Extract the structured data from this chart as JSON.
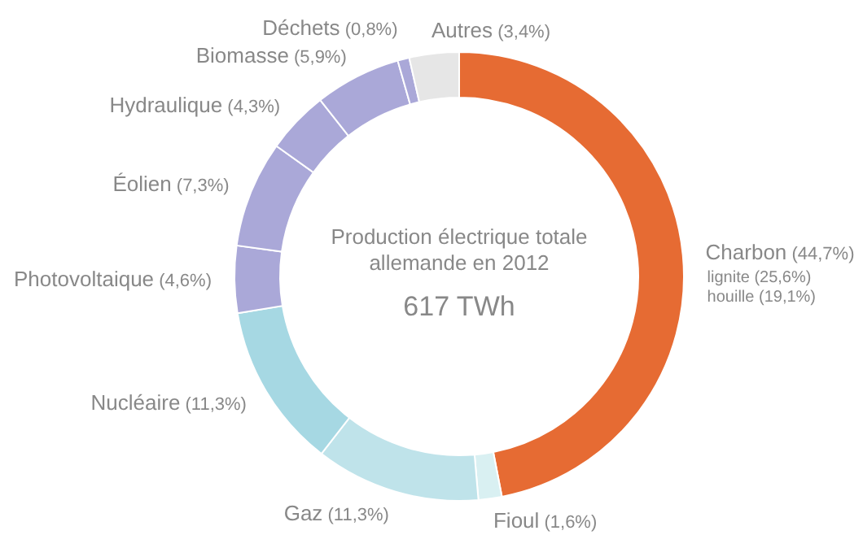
{
  "chart_data": {
    "type": "donut",
    "title": "Production électrique totale allemande en 2012",
    "subtitle": "617 TWh",
    "categories": [
      "Charbon",
      "Fioul",
      "Gaz",
      "Nucléaire",
      "Photovoltaique",
      "Éolien",
      "Hydraulique",
      "Biomasse",
      "Déchets",
      "Autres"
    ],
    "values": [
      44.7,
      1.6,
      11.3,
      11.3,
      4.6,
      7.3,
      4.3,
      5.9,
      0.8,
      3.4
    ],
    "value_labels": [
      "(44,7%)",
      "(1,6%)",
      "(11,3%)",
      "(11,3%)",
      "(4,6%)",
      "(7,3%)",
      "(4,3%)",
      "(5,9%)",
      "(0,8%)",
      "(3,4%)"
    ],
    "colors": [
      "#e66b33",
      "#d9f0f2",
      "#bfe3ea",
      "#a6d8e3",
      "#aaa8d8",
      "#aaa8d8",
      "#aaa8d8",
      "#aaa8d8",
      "#aaa8d8",
      "#e6e6e6"
    ],
    "annotations": [
      "lignite (25,6%)",
      "houille (19,1%)"
    ]
  }
}
